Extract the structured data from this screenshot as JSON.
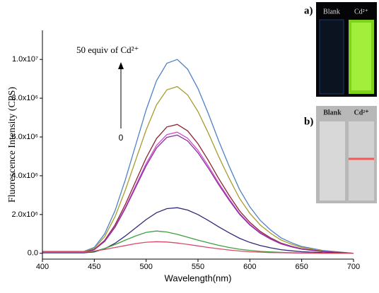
{
  "chart_data": {
    "type": "line",
    "xlabel": "Wavelength(nm)",
    "ylabel": "Fluorescence Intensity (CPS)",
    "annotations": [
      "50 equiv of Cd²⁺",
      "0"
    ],
    "x": [
      400,
      410,
      420,
      430,
      440,
      450,
      460,
      470,
      480,
      490,
      500,
      510,
      520,
      530,
      540,
      550,
      560,
      570,
      580,
      590,
      600,
      610,
      620,
      630,
      640,
      650,
      660,
      670,
      680,
      690,
      700
    ],
    "series": [
      {
        "color": "#4f81c7",
        "values": [
          100000,
          100000,
          100000,
          100000,
          100000,
          300000,
          1000000,
          2200000,
          3800000,
          5600000,
          7400000,
          8900000,
          9800000,
          10000000,
          9500000,
          8500000,
          7200000,
          5800000,
          4500000,
          3300000,
          2400000,
          1700000,
          1200000,
          800000,
          550000,
          350000,
          250000,
          150000,
          100000,
          50000,
          0
        ]
      },
      {
        "color": "#a89c30",
        "values": [
          86000,
          86000,
          86000,
          86000,
          86000,
          258000,
          860000,
          1892000,
          3268000,
          4816000,
          6364000,
          7654000,
          8428000,
          8600000,
          8170000,
          7310000,
          6192000,
          4988000,
          3870000,
          2838000,
          2064000,
          1462000,
          1032000,
          688000,
          473000,
          301000,
          215000,
          129000,
          86000,
          43000,
          0
        ]
      },
      {
        "color": "#8b2232",
        "values": [
          66500,
          66500,
          66500,
          66500,
          66500,
          199500,
          665000,
          1463000,
          2527000,
          3724000,
          4921000,
          5918500,
          6517000,
          6650000,
          6317500,
          5652500,
          4788000,
          3857000,
          2992500,
          2194500,
          1596000,
          1130500,
          798000,
          532000,
          365750,
          232750,
          166250,
          99750,
          66500,
          33250,
          0
        ]
      },
      {
        "color": "#d04ad0",
        "values": [
          62500,
          62500,
          62500,
          62500,
          62500,
          187500,
          625000,
          1375000,
          2375000,
          3500000,
          4625000,
          5562500,
          6125000,
          6250000,
          5937500,
          5312500,
          4500000,
          3625000,
          2812500,
          2062500,
          1500000,
          1062500,
          750000,
          500000,
          343750,
          218750,
          156250,
          93750,
          62500,
          31250,
          0
        ]
      },
      {
        "color": "#8a2c9e",
        "values": [
          61000,
          61000,
          61000,
          61000,
          61000,
          183000,
          610000,
          1342000,
          2318000,
          3416000,
          4514000,
          5429000,
          5978000,
          6100000,
          5795000,
          5185000,
          4392000,
          3538000,
          2745000,
          2013000,
          1464000,
          1037000,
          732000,
          488000,
          335500,
          213500,
          152500,
          91500,
          61000,
          30500,
          0
        ]
      },
      {
        "color": "#2e2a7a",
        "values": [
          23500,
          23500,
          23500,
          23500,
          23500,
          70500,
          235000,
          517000,
          893000,
          1316000,
          1739000,
          2091500,
          2303000,
          2350000,
          2232500,
          1997500,
          1692000,
          1363000,
          1057500,
          775500,
          564000,
          399500,
          282000,
          188000,
          129250,
          82250,
          58750,
          35250,
          23500,
          11750,
          0
        ]
      },
      {
        "color": "#3f9f3f",
        "values": [
          50000,
          50000,
          50000,
          50000,
          50000,
          100000,
          250000,
          450000,
          680000,
          900000,
          1080000,
          1150000,
          1100000,
          980000,
          830000,
          680000,
          540000,
          410000,
          300000,
          210000,
          150000,
          100000,
          70000,
          50000,
          30000,
          20000,
          10000,
          10000,
          0,
          0,
          0
        ]
      },
      {
        "color": "#d84a6a",
        "values": [
          80000,
          80000,
          80000,
          80000,
          80000,
          120000,
          200000,
          300000,
          400000,
          500000,
          570000,
          600000,
          580000,
          530000,
          460000,
          380000,
          300000,
          230000,
          170000,
          120000,
          80000,
          60000,
          40000,
          30000,
          20000,
          10000,
          10000,
          0,
          0,
          0,
          0
        ]
      }
    ],
    "xlim": [
      400,
      700
    ],
    "xticks": [
      400,
      450,
      500,
      550,
      600,
      650,
      700
    ],
    "ylim": [
      -300000,
      11500000
    ],
    "yticks": [
      {
        "value": 0,
        "label": "0.0"
      },
      {
        "value": 2000000,
        "label": "2.0x10⁶"
      },
      {
        "value": 4000000,
        "label": "4.0x10⁶"
      },
      {
        "value": 6000000,
        "label": "6.0x10⁶"
      },
      {
        "value": 8000000,
        "label": "8.0x10⁶"
      },
      {
        "value": 10000000,
        "label": "1.0x10⁷"
      }
    ]
  },
  "insets": {
    "a": {
      "label": "a)",
      "left": "Blank",
      "right": "Cd²⁺"
    },
    "b": {
      "label": "b)",
      "left": "Blank",
      "right": "Cd²⁺"
    }
  }
}
